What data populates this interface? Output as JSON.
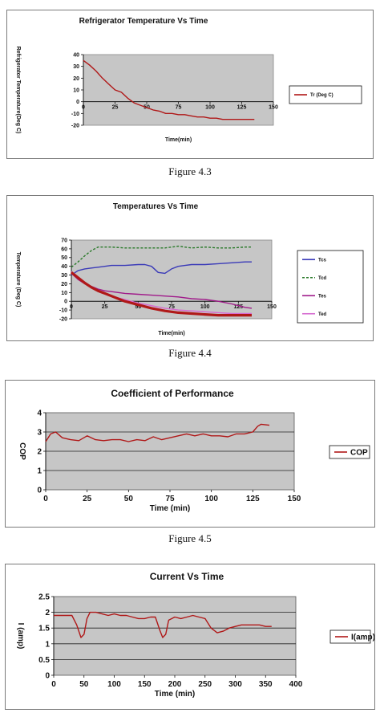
{
  "captions": {
    "fig3": "Figure 4.3",
    "fig4": "Figure 4.4",
    "fig5": "Figure 4.5"
  },
  "chart_data": [
    {
      "type": "line",
      "title": "Refrigerator Temperature Vs Time",
      "xlabel": "Time(min)",
      "ylabel": "Refrigerator Temperature(Deg C)",
      "xlim": [
        0,
        150
      ],
      "ylim": [
        -20,
        40
      ],
      "xticks": [
        0,
        25,
        50,
        75,
        100,
        125,
        150
      ],
      "yticks": [
        -20,
        -10,
        0,
        10,
        20,
        30,
        40
      ],
      "grid": false,
      "legend_position": "right",
      "series": [
        {
          "name": "Tr (Deg C)",
          "color": "#b01818",
          "dash": "",
          "x": [
            0,
            5,
            10,
            15,
            20,
            25,
            30,
            35,
            40,
            45,
            50,
            55,
            60,
            65,
            70,
            75,
            80,
            85,
            90,
            95,
            100,
            105,
            110,
            115,
            120,
            125,
            130,
            135
          ],
          "y": [
            35,
            31,
            26,
            20,
            15,
            10,
            8,
            3,
            -1,
            -3,
            -5,
            -7,
            -8,
            -10,
            -10,
            -11,
            -11,
            -12,
            -13,
            -13,
            -14,
            -14,
            -15,
            -15,
            -15,
            -15,
            -15,
            -15
          ]
        }
      ]
    },
    {
      "type": "line",
      "title": "Temperatures Vs Time",
      "xlabel": "Time(min)",
      "ylabel": "Temperature (Deg C)",
      "xlim": [
        0,
        150
      ],
      "ylim": [
        -20,
        70
      ],
      "xticks": [
        0,
        25,
        50,
        75,
        100,
        125,
        150
      ],
      "yticks": [
        -20,
        -10,
        0,
        10,
        20,
        30,
        40,
        50,
        60,
        70
      ],
      "grid": false,
      "legend_position": "right",
      "series": [
        {
          "name": "Tcs",
          "color": "#3a3ab8",
          "dash": "",
          "x": [
            0,
            5,
            10,
            15,
            20,
            25,
            30,
            40,
            50,
            55,
            60,
            65,
            70,
            75,
            80,
            85,
            90,
            100,
            110,
            120,
            130,
            135
          ],
          "y": [
            30,
            35,
            37,
            38,
            39,
            40,
            41,
            41,
            42,
            42,
            40,
            33,
            32,
            37,
            40,
            41,
            42,
            42,
            43,
            44,
            45,
            45
          ]
        },
        {
          "name": "Tcd",
          "color": "#2a7a2a",
          "dash": "3,2",
          "x": [
            0,
            5,
            10,
            15,
            20,
            25,
            30,
            40,
            50,
            60,
            70,
            80,
            90,
            100,
            110,
            120,
            130,
            135
          ],
          "y": [
            39,
            45,
            52,
            58,
            62,
            62,
            62,
            61,
            61,
            61,
            61,
            63,
            61,
            62,
            61,
            61,
            62,
            62
          ]
        },
        {
          "name": "Tes",
          "color": "#a01a8a",
          "dash": "",
          "x": [
            0,
            5,
            10,
            15,
            20,
            25,
            30,
            40,
            50,
            60,
            70,
            80,
            90,
            100,
            110,
            120,
            130,
            135
          ],
          "y": [
            32,
            25,
            20,
            17,
            14,
            12,
            11,
            9,
            8,
            7,
            6,
            5,
            3,
            2,
            0,
            -3,
            -7,
            -8
          ]
        },
        {
          "name": "Ted",
          "color": "#d66ad0",
          "dash": "",
          "x": [
            0,
            5,
            10,
            15,
            20,
            25,
            30,
            40,
            50,
            60,
            70,
            80,
            90,
            100,
            110,
            120,
            130,
            135
          ],
          "y": [
            34,
            28,
            22,
            16,
            12,
            9,
            6,
            2,
            -2,
            -5,
            -8,
            -10,
            -11,
            -12,
            -13,
            -14,
            -14,
            -14
          ]
        },
        {
          "name": "Tr",
          "color": "#b01818",
          "dash": "",
          "width": 3.2,
          "legend": false,
          "x": [
            0,
            5,
            10,
            15,
            20,
            25,
            30,
            40,
            50,
            60,
            70,
            80,
            90,
            100,
            110,
            120,
            130,
            135
          ],
          "y": [
            33,
            27,
            21,
            16,
            12,
            9,
            6,
            0,
            -4,
            -8,
            -11,
            -13,
            -14,
            -15,
            -16,
            -16,
            -16,
            -16
          ]
        }
      ]
    },
    {
      "type": "line",
      "title": "Coefficient of Performance",
      "xlabel": "Time (min)",
      "ylabel": "COP",
      "xlim": [
        0,
        150
      ],
      "ylim": [
        0,
        4
      ],
      "xticks": [
        0,
        25,
        50,
        75,
        100,
        125,
        150
      ],
      "yticks": [
        0,
        1,
        2,
        3,
        4
      ],
      "grid": true,
      "legend_position": "right",
      "series": [
        {
          "name": "COP",
          "color": "#b01818",
          "dash": "",
          "x": [
            0,
            3,
            6,
            10,
            15,
            20,
            25,
            30,
            35,
            40,
            45,
            50,
            55,
            60,
            65,
            70,
            75,
            80,
            85,
            90,
            95,
            100,
            105,
            110,
            115,
            120,
            125,
            128,
            130,
            135
          ],
          "y": [
            2.5,
            2.9,
            3.0,
            2.7,
            2.6,
            2.55,
            2.8,
            2.6,
            2.55,
            2.6,
            2.6,
            2.5,
            2.6,
            2.55,
            2.75,
            2.6,
            2.7,
            2.8,
            2.9,
            2.8,
            2.9,
            2.8,
            2.8,
            2.75,
            2.9,
            2.9,
            3.0,
            3.3,
            3.4,
            3.35
          ]
        }
      ]
    },
    {
      "type": "line",
      "title": "Current Vs Time",
      "xlabel": "Time (min)",
      "ylabel": "I (amp)",
      "xlim": [
        0,
        400
      ],
      "ylim": [
        0,
        2.5
      ],
      "xticks": [
        0,
        50,
        100,
        150,
        200,
        250,
        300,
        350,
        400
      ],
      "yticks": [
        0,
        0.5,
        1,
        1.5,
        2,
        2.5
      ],
      "grid": true,
      "legend_position": "right",
      "series": [
        {
          "name": "I(amp)",
          "color": "#b01818",
          "dash": "",
          "x": [
            0,
            15,
            30,
            38,
            45,
            50,
            55,
            60,
            70,
            80,
            90,
            100,
            110,
            120,
            130,
            140,
            150,
            160,
            168,
            175,
            180,
            185,
            190,
            200,
            210,
            220,
            230,
            240,
            250,
            260,
            270,
            280,
            290,
            300,
            310,
            320,
            330,
            340,
            350,
            360
          ],
          "y": [
            1.9,
            1.9,
            1.9,
            1.6,
            1.2,
            1.3,
            1.8,
            2.0,
            2.0,
            1.95,
            1.9,
            1.95,
            1.9,
            1.9,
            1.85,
            1.8,
            1.8,
            1.85,
            1.85,
            1.45,
            1.2,
            1.3,
            1.75,
            1.85,
            1.8,
            1.85,
            1.9,
            1.85,
            1.8,
            1.5,
            1.35,
            1.4,
            1.5,
            1.55,
            1.6,
            1.6,
            1.6,
            1.6,
            1.55,
            1.55
          ]
        }
      ]
    }
  ]
}
